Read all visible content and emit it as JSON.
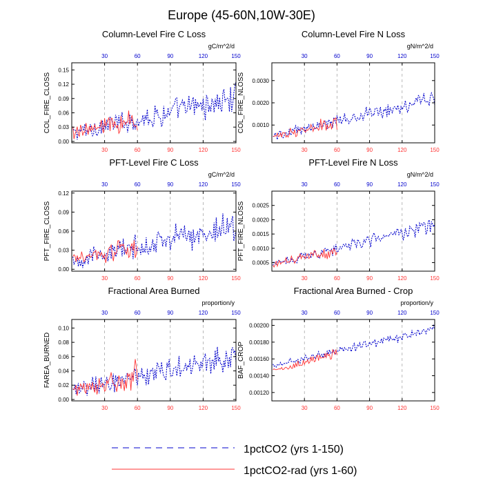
{
  "figure": {
    "title": "Europe (45-60N,10W-30E)",
    "colors": {
      "ctrl": "#0000cc",
      "rad": "#ff3333",
      "grid": "#9a9a9a"
    },
    "legend": [
      {
        "label": "1pctCO2 (yrs 1-150)",
        "color": "#0000cc",
        "style": "dashed"
      },
      {
        "label": "1pctCO2-rad (yrs 1-60)",
        "color": "#ff3333",
        "style": "solid"
      }
    ]
  },
  "chart_data": [
    {
      "type": "line",
      "title": "Column-Level Fire C Loss",
      "ylabel": "COL_FIRE_CLOSS",
      "units": "gC/m^2/d",
      "xlim": [
        0,
        150
      ],
      "ylim": [
        -0.003,
        0.165
      ],
      "yticks": [
        "0.00",
        "0.03",
        "0.06",
        "0.09",
        "0.12",
        "0.15"
      ],
      "ytick_values": [
        0,
        0.03,
        0.06,
        0.09,
        0.12,
        0.15
      ],
      "xticks": [
        30,
        60,
        90,
        120,
        150
      ],
      "series": [
        {
          "name": "1pctCO2 (yrs 1-150)",
          "length": 150,
          "start": 0.018,
          "end": 0.09,
          "amp": 0.035
        },
        {
          "name": "1pctCO2-rad (yrs 1-60)",
          "length": 60,
          "start": 0.02,
          "end": 0.045,
          "amp": 0.03
        }
      ]
    },
    {
      "type": "line",
      "title": "Column-Level Fire N Loss",
      "ylabel": "COL_FIRE_NLOSS",
      "units": "gN/m^2/d",
      "xlim": [
        0,
        150
      ],
      "ylim": [
        0.0002,
        0.0038
      ],
      "yticks": [
        "0.0010",
        "0.0020",
        "0.0030"
      ],
      "ytick_values": [
        0.001,
        0.002,
        0.003
      ],
      "xticks": [
        30,
        60,
        90,
        120,
        150
      ],
      "series": [
        {
          "name": "1pctCO2 (yrs 1-150)",
          "length": 150,
          "start": 0.0005,
          "end": 0.0022,
          "amp": 0.0004
        },
        {
          "name": "1pctCO2-rad (yrs 1-60)",
          "length": 60,
          "start": 0.0005,
          "end": 0.0011,
          "amp": 0.00035
        }
      ]
    },
    {
      "type": "line",
      "title": "PFT-Level Fire C Loss",
      "ylabel": "PFT_FIRE_CLOSS",
      "units": "gC/m^2/d",
      "xlim": [
        0,
        150
      ],
      "ylim": [
        -0.003,
        0.123
      ],
      "yticks": [
        "0.00",
        "0.03",
        "0.06",
        "0.09",
        "0.12"
      ],
      "ytick_values": [
        0,
        0.03,
        0.06,
        0.09,
        0.12
      ],
      "xticks": [
        30,
        60,
        90,
        120,
        150
      ],
      "series": [
        {
          "name": "1pctCO2 (yrs 1-150)",
          "length": 150,
          "start": 0.014,
          "end": 0.068,
          "amp": 0.027
        },
        {
          "name": "1pctCO2-rad (yrs 1-60)",
          "length": 60,
          "start": 0.015,
          "end": 0.035,
          "amp": 0.022
        }
      ]
    },
    {
      "type": "line",
      "title": "PFT-Level Fire N Loss",
      "ylabel": "PFT_FIRE_NLOSS",
      "units": "gN/m^2/d",
      "xlim": [
        0,
        150
      ],
      "ylim": [
        0.0002,
        0.003
      ],
      "yticks": [
        "0.0005",
        "0.0010",
        "0.0015",
        "0.0020",
        "0.0025"
      ],
      "ytick_values": [
        0.0005,
        0.001,
        0.0015,
        0.002,
        0.0025
      ],
      "xticks": [
        30,
        60,
        90,
        120,
        150
      ],
      "series": [
        {
          "name": "1pctCO2 (yrs 1-150)",
          "length": 150,
          "start": 0.00045,
          "end": 0.0018,
          "amp": 0.0003
        },
        {
          "name": "1pctCO2-rad (yrs 1-60)",
          "length": 60,
          "start": 0.00045,
          "end": 0.0009,
          "amp": 0.00025
        }
      ]
    },
    {
      "type": "line",
      "title": "Fractional Area Burned",
      "ylabel": "FAREA_BURNED",
      "units": "proportion/y",
      "xlim": [
        0,
        150
      ],
      "ylim": [
        -0.002,
        0.112
      ],
      "yticks": [
        "0.00",
        "0.02",
        "0.04",
        "0.06",
        "0.08",
        "0.10"
      ],
      "ytick_values": [
        0,
        0.02,
        0.04,
        0.06,
        0.08,
        0.1
      ],
      "xticks": [
        30,
        60,
        90,
        120,
        150
      ],
      "series": [
        {
          "name": "1pctCO2 (yrs 1-150)",
          "length": 150,
          "start": 0.013,
          "end": 0.062,
          "amp": 0.024
        },
        {
          "name": "1pctCO2-rad (yrs 1-60)",
          "length": 60,
          "start": 0.014,
          "end": 0.034,
          "amp": 0.022
        }
      ]
    },
    {
      "type": "line",
      "title": "Fractional Area Burned - Crop",
      "ylabel": "BAF_CROP",
      "units": "proportion/y",
      "xlim": [
        0,
        150
      ],
      "ylim": [
        0.0011,
        0.00207
      ],
      "yticks": [
        "0.00120",
        "0.00140",
        "0.00160",
        "0.00180",
        "0.00200"
      ],
      "ytick_values": [
        0.0012,
        0.0014,
        0.0016,
        0.0018,
        0.002
      ],
      "xticks": [
        30,
        60,
        90,
        120,
        150
      ],
      "series": [
        {
          "name": "1pctCO2 (yrs 1-150)",
          "length": 150,
          "start": 0.00152,
          "end": 0.00195,
          "amp": 7e-05
        },
        {
          "name": "1pctCO2-rad (yrs 1-60)",
          "length": 60,
          "start": 0.00145,
          "end": 0.00168,
          "amp": 7e-05
        }
      ]
    }
  ]
}
